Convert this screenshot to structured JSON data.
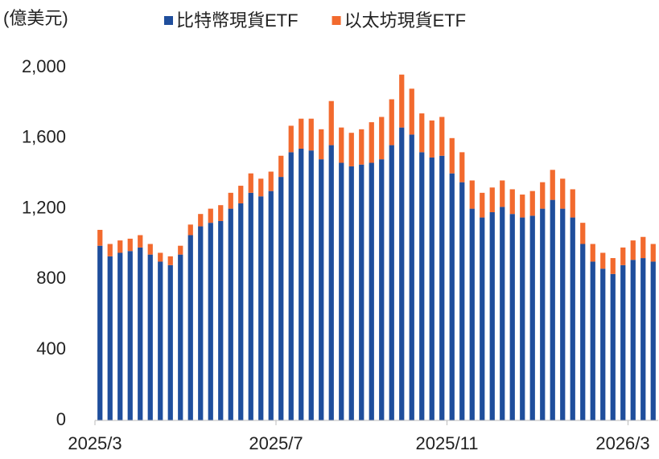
{
  "chart_data": {
    "type": "stacked_bar",
    "y_label": "(億美元)",
    "categories": [
      "2025/3",
      null,
      null,
      null,
      null,
      null,
      null,
      null,
      null,
      null,
      null,
      null,
      null,
      null,
      null,
      null,
      null,
      null,
      "2025/7",
      null,
      null,
      null,
      null,
      null,
      null,
      null,
      null,
      null,
      null,
      null,
      null,
      null,
      null,
      null,
      null,
      "2025/11",
      null,
      null,
      null,
      null,
      null,
      null,
      null,
      null,
      null,
      null,
      null,
      null,
      null,
      null,
      null,
      null,
      null,
      "2026/3",
      null,
      null
    ],
    "series": [
      {
        "name": "比特幣現貨ETF",
        "color": "#1f4e9c",
        "values": [
          990,
          930,
          950,
          960,
          980,
          940,
          900,
          880,
          940,
          1050,
          1100,
          1120,
          1130,
          1200,
          1230,
          1290,
          1270,
          1300,
          1380,
          1520,
          1540,
          1530,
          1480,
          1560,
          1460,
          1440,
          1450,
          1460,
          1480,
          1560,
          1660,
          1620,
          1520,
          1490,
          1500,
          1400,
          1350,
          1200,
          1150,
          1180,
          1210,
          1170,
          1150,
          1160,
          1200,
          1250,
          1200,
          1150,
          1000,
          900,
          860,
          830,
          880,
          910,
          920,
          900
        ]
      },
      {
        "name": "以太坊現貨ETF",
        "color": "#f26a2e",
        "values": [
          90,
          70,
          70,
          70,
          70,
          60,
          50,
          50,
          50,
          60,
          70,
          80,
          90,
          90,
          100,
          110,
          100,
          110,
          120,
          150,
          170,
          180,
          170,
          250,
          200,
          190,
          200,
          230,
          240,
          260,
          300,
          260,
          220,
          210,
          220,
          200,
          170,
          160,
          140,
          140,
          150,
          140,
          130,
          140,
          150,
          170,
          170,
          160,
          120,
          100,
          90,
          90,
          100,
          110,
          120,
          100
        ]
      }
    ],
    "ylim": [
      0,
      2000
    ],
    "yticks": [
      0,
      400,
      800,
      {
        "value": 1200,
        "label": "1,200"
      },
      {
        "value": 1600,
        "label": "1,600"
      },
      {
        "value": 2000,
        "label": "2,000"
      }
    ],
    "legend": "top"
  }
}
